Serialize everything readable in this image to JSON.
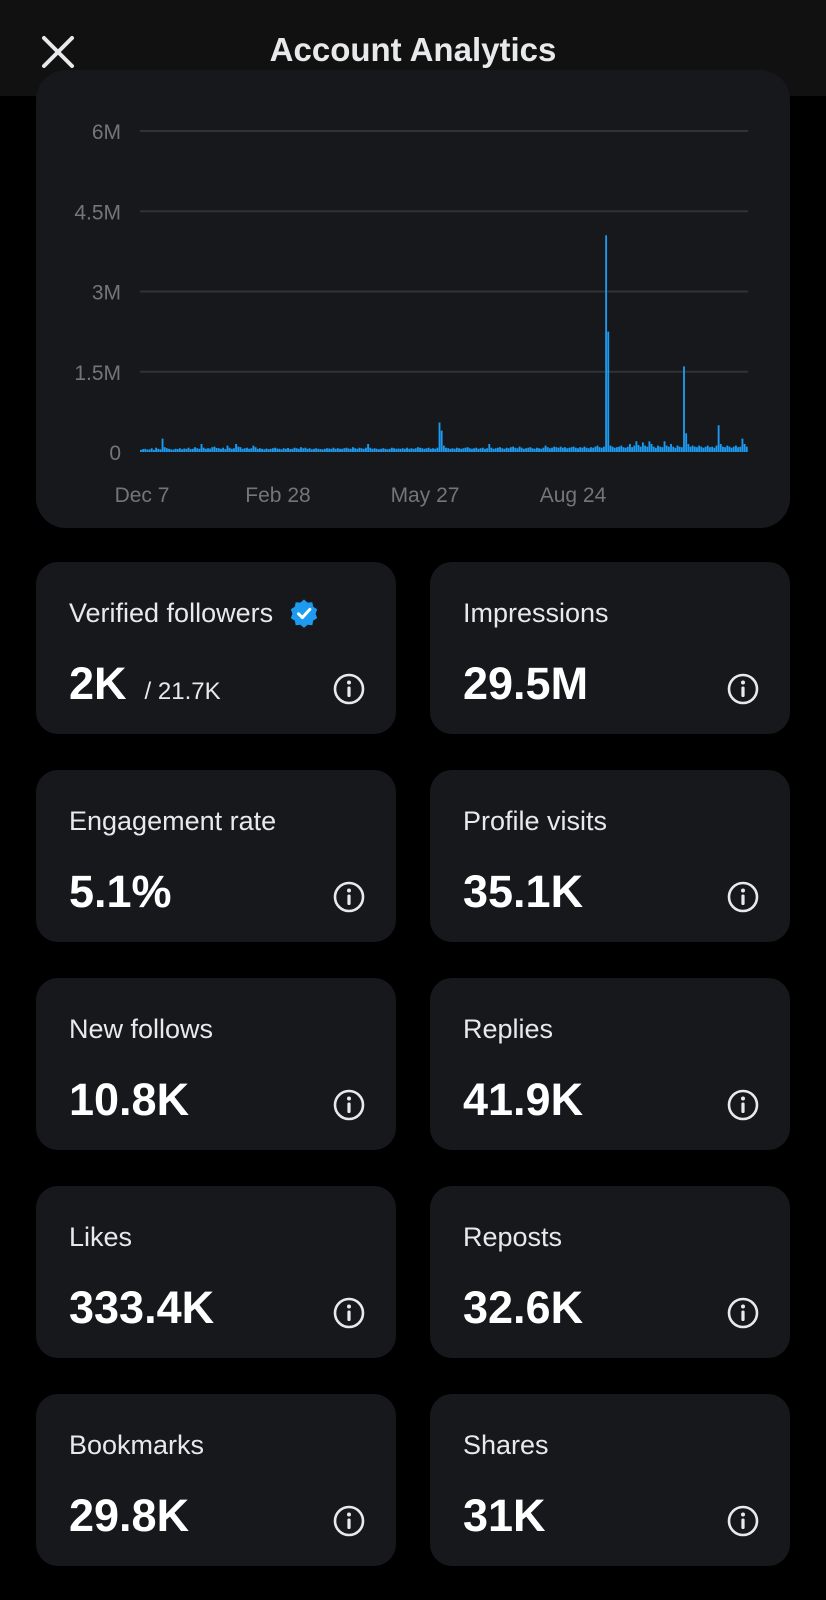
{
  "header": {
    "title": "Account Analytics",
    "close_icon": "close-icon"
  },
  "chart_data": {
    "type": "bar",
    "x_ticks": [
      "Dec 7",
      "Feb 28",
      "May 27",
      "Aug 24"
    ],
    "y_ticks": [
      "6M",
      "4.5M",
      "3M",
      "1.5M",
      "0"
    ],
    "ylim": [
      0,
      6000000
    ],
    "grid": true,
    "color": "#1d9bf0",
    "values": [
      40000,
      55000,
      60000,
      45000,
      50000,
      70000,
      40000,
      80000,
      60000,
      50000,
      250000,
      90000,
      70000,
      60000,
      50000,
      45000,
      60000,
      55000,
      70000,
      50000,
      65000,
      60000,
      80000,
      55000,
      60000,
      90000,
      70000,
      60000,
      150000,
      80000,
      60000,
      70000,
      65000,
      90000,
      100000,
      75000,
      70000,
      60000,
      80000,
      55000,
      120000,
      80000,
      60000,
      70000,
      150000,
      100000,
      90000,
      60000,
      70000,
      80000,
      60000,
      70000,
      120000,
      90000,
      60000,
      70000,
      60000,
      50000,
      65000,
      55000,
      60000,
      70000,
      80000,
      65000,
      60000,
      50000,
      70000,
      60000,
      75000,
      55000,
      60000,
      80000,
      70000,
      60000,
      90000,
      70000,
      80000,
      60000,
      70000,
      50000,
      60000,
      70000,
      60000,
      55000,
      50000,
      60000,
      70000,
      65000,
      60000,
      80000,
      60000,
      70000,
      60000,
      60000,
      70000,
      80000,
      65000,
      60000,
      90000,
      70000,
      60000,
      80000,
      70000,
      60000,
      80000,
      150000,
      80000,
      60000,
      70000,
      60000,
      50000,
      60000,
      70000,
      60000,
      50000,
      60000,
      80000,
      70000,
      60000,
      65000,
      60000,
      70000,
      60000,
      80000,
      60000,
      70000,
      60000,
      70000,
      90000,
      80000,
      70000,
      60000,
      70000,
      80000,
      60000,
      70000,
      60000,
      80000,
      550000,
      400000,
      120000,
      80000,
      70000,
      60000,
      70000,
      60000,
      80000,
      70000,
      60000,
      70000,
      80000,
      90000,
      70000,
      60000,
      70000,
      80000,
      60000,
      70000,
      80000,
      60000,
      70000,
      150000,
      80000,
      60000,
      70000,
      80000,
      90000,
      70000,
      60000,
      80000,
      70000,
      90000,
      100000,
      80000,
      70000,
      100000,
      80000,
      60000,
      70000,
      80000,
      90000,
      70000,
      60000,
      80000,
      70000,
      60000,
      80000,
      120000,
      90000,
      70000,
      80000,
      100000,
      90000,
      80000,
      100000,
      80000,
      90000,
      70000,
      80000,
      90000,
      100000,
      80000,
      70000,
      90000,
      80000,
      100000,
      80000,
      70000,
      90000,
      80000,
      100000,
      120000,
      90000,
      80000,
      100000,
      4050000,
      2250000,
      120000,
      100000,
      80000,
      90000,
      100000,
      120000,
      90000,
      80000,
      100000,
      150000,
      90000,
      120000,
      200000,
      130000,
      100000,
      180000,
      120000,
      100000,
      200000,
      150000,
      100000,
      80000,
      120000,
      100000,
      90000,
      200000,
      120000,
      100000,
      150000,
      100000,
      80000,
      120000,
      100000,
      90000,
      1600000,
      350000,
      150000,
      100000,
      120000,
      100000,
      90000,
      120000,
      100000,
      80000,
      100000,
      120000,
      90000,
      100000,
      80000,
      120000,
      500000,
      150000,
      100000,
      90000,
      120000,
      100000,
      80000,
      100000,
      120000,
      90000,
      100000,
      250000,
      150000,
      100000
    ]
  },
  "metrics": [
    {
      "label": "Verified followers",
      "value": "2K",
      "sub": "/ 21.7K",
      "verified_icon": "verified-badge-icon",
      "info_icon": "info-icon",
      "verified_color": "#1d9bf0"
    },
    {
      "label": "Impressions",
      "value": "29.5M",
      "info_icon": "info-icon"
    },
    {
      "label": "Engagement rate",
      "value": "5.1%",
      "info_icon": "info-icon"
    },
    {
      "label": "Profile visits",
      "value": "35.1K",
      "info_icon": "info-icon"
    },
    {
      "label": "New follows",
      "value": "10.8K",
      "info_icon": "info-icon"
    },
    {
      "label": "Replies",
      "value": "41.9K",
      "info_icon": "info-icon"
    },
    {
      "label": "Likes",
      "value": "333.4K",
      "info_icon": "info-icon"
    },
    {
      "label": "Reposts",
      "value": "32.6K",
      "info_icon": "info-icon"
    },
    {
      "label": "Bookmarks",
      "value": "29.8K",
      "info_icon": "info-icon"
    },
    {
      "label": "Shares",
      "value": "31K",
      "info_icon": "info-icon"
    }
  ]
}
